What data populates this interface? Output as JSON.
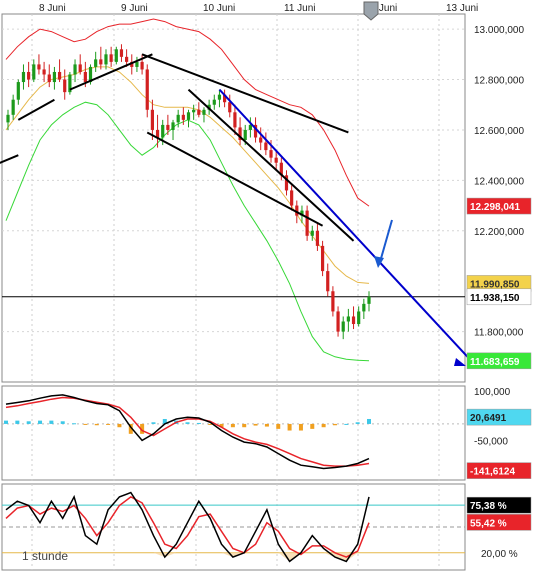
{
  "chart_data": {
    "type": "candlestick",
    "timeframe_label": "1 stunde",
    "date_labels": [
      "8 Juni",
      "9 Juni",
      "10 Juni",
      "11 Juni",
      "12 Juni",
      "13 Juni"
    ],
    "price_axis": {
      "ticks": [
        "13.000,000",
        "12.800,000",
        "12.600,000",
        "12.400,000",
        "12.200,000",
        "11.800,000"
      ],
      "ylim": [
        11600,
        13060
      ],
      "current_price": "11.938,150",
      "badges": [
        {
          "label": "12.298,041",
          "value": 12298,
          "color": "#e8242a"
        },
        {
          "label": "11.990,850",
          "value": 11991,
          "color": "#f3d24b"
        },
        {
          "label": "11.683,659",
          "value": 11684,
          "color": "#38e838"
        }
      ]
    },
    "candles": [
      {
        "o": 12630,
        "h": 12680,
        "l": 12600,
        "c": 12660
      },
      {
        "o": 12660,
        "h": 12740,
        "l": 12640,
        "c": 12720
      },
      {
        "o": 12720,
        "h": 12800,
        "l": 12700,
        "c": 12790
      },
      {
        "o": 12790,
        "h": 12860,
        "l": 12760,
        "c": 12830
      },
      {
        "o": 12830,
        "h": 12870,
        "l": 12770,
        "c": 12800
      },
      {
        "o": 12800,
        "h": 12880,
        "l": 12790,
        "c": 12860
      },
      {
        "o": 12860,
        "h": 12900,
        "l": 12820,
        "c": 12840
      },
      {
        "o": 12840,
        "h": 12870,
        "l": 12790,
        "c": 12820
      },
      {
        "o": 12820,
        "h": 12860,
        "l": 12770,
        "c": 12790
      },
      {
        "o": 12790,
        "h": 12850,
        "l": 12760,
        "c": 12830
      },
      {
        "o": 12830,
        "h": 12880,
        "l": 12790,
        "c": 12800
      },
      {
        "o": 12800,
        "h": 12840,
        "l": 12720,
        "c": 12750
      },
      {
        "o": 12750,
        "h": 12830,
        "l": 12740,
        "c": 12820
      },
      {
        "o": 12820,
        "h": 12880,
        "l": 12790,
        "c": 12860
      },
      {
        "o": 12860,
        "h": 12900,
        "l": 12820,
        "c": 12830
      },
      {
        "o": 12830,
        "h": 12870,
        "l": 12770,
        "c": 12790
      },
      {
        "o": 12790,
        "h": 12860,
        "l": 12780,
        "c": 12850
      },
      {
        "o": 12850,
        "h": 12910,
        "l": 12830,
        "c": 12880
      },
      {
        "o": 12880,
        "h": 12930,
        "l": 12840,
        "c": 12860
      },
      {
        "o": 12860,
        "h": 12920,
        "l": 12840,
        "c": 12900
      },
      {
        "o": 12900,
        "h": 12930,
        "l": 12850,
        "c": 12870
      },
      {
        "o": 12870,
        "h": 12930,
        "l": 12860,
        "c": 12920
      },
      {
        "o": 12920,
        "h": 12940,
        "l": 12870,
        "c": 12890
      },
      {
        "o": 12890,
        "h": 12920,
        "l": 12850,
        "c": 12870
      },
      {
        "o": 12870,
        "h": 12900,
        "l": 12820,
        "c": 12850
      },
      {
        "o": 12850,
        "h": 12890,
        "l": 12830,
        "c": 12870
      },
      {
        "o": 12870,
        "h": 12900,
        "l": 12820,
        "c": 12840
      },
      {
        "o": 12840,
        "h": 12860,
        "l": 12650,
        "c": 12680
      },
      {
        "o": 12680,
        "h": 12720,
        "l": 12560,
        "c": 12600
      },
      {
        "o": 12600,
        "h": 12660,
        "l": 12530,
        "c": 12570
      },
      {
        "o": 12570,
        "h": 12640,
        "l": 12540,
        "c": 12620
      },
      {
        "o": 12620,
        "h": 12660,
        "l": 12580,
        "c": 12600
      },
      {
        "o": 12600,
        "h": 12640,
        "l": 12560,
        "c": 12630
      },
      {
        "o": 12630,
        "h": 12680,
        "l": 12610,
        "c": 12660
      },
      {
        "o": 12660,
        "h": 12690,
        "l": 12620,
        "c": 12640
      },
      {
        "o": 12640,
        "h": 12680,
        "l": 12610,
        "c": 12670
      },
      {
        "o": 12670,
        "h": 12700,
        "l": 12640,
        "c": 12680
      },
      {
        "o": 12680,
        "h": 12710,
        "l": 12650,
        "c": 12660
      },
      {
        "o": 12660,
        "h": 12690,
        "l": 12630,
        "c": 12680
      },
      {
        "o": 12680,
        "h": 12720,
        "l": 12660,
        "c": 12700
      },
      {
        "o": 12700,
        "h": 12740,
        "l": 12680,
        "c": 12720
      },
      {
        "o": 12720,
        "h": 12760,
        "l": 12690,
        "c": 12740
      },
      {
        "o": 12740,
        "h": 12760,
        "l": 12690,
        "c": 12710
      },
      {
        "o": 12710,
        "h": 12740,
        "l": 12650,
        "c": 12670
      },
      {
        "o": 12670,
        "h": 12700,
        "l": 12580,
        "c": 12610
      },
      {
        "o": 12610,
        "h": 12650,
        "l": 12540,
        "c": 12560
      },
      {
        "o": 12560,
        "h": 12620,
        "l": 12540,
        "c": 12600
      },
      {
        "o": 12600,
        "h": 12650,
        "l": 12570,
        "c": 12620
      },
      {
        "o": 12620,
        "h": 12650,
        "l": 12550,
        "c": 12570
      },
      {
        "o": 12570,
        "h": 12610,
        "l": 12520,
        "c": 12550
      },
      {
        "o": 12550,
        "h": 12590,
        "l": 12500,
        "c": 12520
      },
      {
        "o": 12520,
        "h": 12560,
        "l": 12470,
        "c": 12490
      },
      {
        "o": 12490,
        "h": 12520,
        "l": 12440,
        "c": 12470
      },
      {
        "o": 12470,
        "h": 12490,
        "l": 12400,
        "c": 12420
      },
      {
        "o": 12420,
        "h": 12440,
        "l": 12340,
        "c": 12360
      },
      {
        "o": 12360,
        "h": 12380,
        "l": 12280,
        "c": 12300
      },
      {
        "o": 12300,
        "h": 12320,
        "l": 12230,
        "c": 12260
      },
      {
        "o": 12260,
        "h": 12300,
        "l": 12230,
        "c": 12280
      },
      {
        "o": 12280,
        "h": 12300,
        "l": 12160,
        "c": 12180
      },
      {
        "o": 12180,
        "h": 12220,
        "l": 12160,
        "c": 12200
      },
      {
        "o": 12200,
        "h": 12230,
        "l": 12120,
        "c": 12140
      },
      {
        "o": 12140,
        "h": 12160,
        "l": 12020,
        "c": 12040
      },
      {
        "o": 12040,
        "h": 12070,
        "l": 11940,
        "c": 11960
      },
      {
        "o": 11960,
        "h": 11980,
        "l": 11860,
        "c": 11880
      },
      {
        "o": 11880,
        "h": 11900,
        "l": 11780,
        "c": 11800
      },
      {
        "o": 11800,
        "h": 11860,
        "l": 11770,
        "c": 11840
      },
      {
        "o": 11840,
        "h": 11890,
        "l": 11800,
        "c": 11860
      },
      {
        "o": 11860,
        "h": 11900,
        "l": 11810,
        "c": 11830
      },
      {
        "o": 11830,
        "h": 11900,
        "l": 11820,
        "c": 11880
      },
      {
        "o": 11880,
        "h": 11930,
        "l": 11850,
        "c": 11910
      },
      {
        "o": 11910,
        "h": 11960,
        "l": 11880,
        "c": 11938
      }
    ],
    "bollinger": {
      "upper": [
        12880,
        12930,
        12970,
        13000,
        12990,
        12970,
        12950,
        12960,
        12990,
        13010,
        13020,
        13020,
        13030,
        13040,
        13030,
        13010,
        13000,
        12990,
        12960,
        12920,
        12860,
        12800,
        12760,
        12740,
        12720,
        12700,
        12690,
        12660,
        12600,
        12520,
        12420,
        12330,
        12298
      ],
      "middle": [
        12600,
        12660,
        12720,
        12770,
        12800,
        12810,
        12820,
        12840,
        12850,
        12850,
        12830,
        12790,
        12740,
        12700,
        12690,
        12690,
        12690,
        12680,
        12650,
        12610,
        12570,
        12520,
        12470,
        12420,
        12370,
        12310,
        12240,
        12180,
        12120,
        12060,
        12020,
        11995,
        11991
      ],
      "lower": [
        12240,
        12350,
        12460,
        12560,
        12620,
        12660,
        12690,
        12710,
        12700,
        12660,
        12600,
        12540,
        12500,
        12530,
        12580,
        12620,
        12640,
        12620,
        12560,
        12470,
        12380,
        12300,
        12230,
        12160,
        12080,
        11990,
        11880,
        11780,
        11720,
        11700,
        11690,
        11686,
        11684
      ]
    },
    "ma_line": [
      12560,
      12620,
      12680,
      12740,
      12780,
      12800,
      12810,
      12830,
      12850,
      12850,
      12830,
      12790,
      12740,
      12700,
      12690,
      12690,
      12690,
      12670,
      12640,
      12600,
      12550,
      12500,
      12440,
      12390,
      12330,
      12260,
      12190,
      12120,
      12040,
      11980,
      11940,
      11930,
      11940
    ],
    "trendlines": [
      {
        "color": "#000000",
        "from": [
          12,
          12760
        ],
        "to": [
          28,
          12900
        ]
      },
      {
        "color": "#000000",
        "from": [
          26,
          12900
        ],
        "to": [
          66,
          12590
        ]
      },
      {
        "color": "#000000",
        "from": [
          27,
          12590
        ],
        "to": [
          61,
          12220
        ]
      },
      {
        "color": "#000000",
        "from": [
          35,
          12760
        ],
        "to": [
          67,
          12160
        ]
      },
      {
        "color": "#000000",
        "from": [
          2,
          12640
        ],
        "to": [
          9,
          12720
        ]
      },
      {
        "color": "#000000",
        "from": [
          -5,
          12440
        ],
        "to": [
          2,
          12500
        ]
      },
      {
        "color": "#0000cc",
        "from": [
          41,
          12760
        ],
        "to": [
          90,
          11680
        ]
      }
    ],
    "macd": {
      "ticks": [
        "100,000",
        "-50,000"
      ],
      "ylim": [
        -170,
        115
      ],
      "badges": [
        {
          "label": "20,6491",
          "value": 20.65,
          "color": "#4fd8f0"
        },
        {
          "label": "-141,6124",
          "value": -141.6,
          "color": "#e8242a"
        }
      ],
      "macd_line": [
        60,
        65,
        70,
        78,
        85,
        88,
        80,
        70,
        62,
        58,
        40,
        -10,
        -50,
        -30,
        0,
        15,
        20,
        18,
        5,
        -20,
        -40,
        -55,
        -60,
        -70,
        -90,
        -110,
        -125,
        -130,
        -135,
        -132,
        -128,
        -120,
        -105
      ],
      "signal_line": [
        50,
        55,
        62,
        68,
        75,
        80,
        78,
        72,
        66,
        60,
        50,
        20,
        -20,
        -35,
        -15,
        5,
        15,
        15,
        8,
        -10,
        -30,
        -45,
        -55,
        -62,
        -75,
        -90,
        -105,
        -115,
        -125,
        -128,
        -128,
        -125,
        -120
      ],
      "histogram": [
        10,
        10,
        8,
        10,
        10,
        8,
        2,
        -2,
        -4,
        -2,
        -10,
        -30,
        -30,
        5,
        15,
        10,
        5,
        3,
        -3,
        -10,
        -10,
        -10,
        -5,
        -8,
        -15,
        -20,
        -20,
        -15,
        -10,
        -4,
        0,
        5,
        15
      ]
    },
    "stochastic": {
      "ticks": [
        "20,00 %"
      ],
      "ylim": [
        0,
        100
      ],
      "upper_level": 75.38,
      "lower_level": 20,
      "badges": [
        {
          "label": "75,38 %",
          "value": 75.38,
          "color": "#000000"
        },
        {
          "label": "55,42 %",
          "value": 55.42,
          "color": "#e8242a"
        }
      ],
      "k_line": [
        70,
        80,
        75,
        55,
        80,
        60,
        85,
        40,
        30,
        70,
        85,
        90,
        70,
        40,
        15,
        30,
        55,
        80,
        60,
        30,
        15,
        20,
        45,
        70,
        30,
        10,
        20,
        40,
        25,
        15,
        10,
        30,
        85
      ],
      "d_line": [
        60,
        72,
        75,
        65,
        72,
        68,
        75,
        60,
        40,
        55,
        75,
        85,
        78,
        55,
        30,
        25,
        40,
        62,
        65,
        45,
        25,
        20,
        30,
        55,
        45,
        25,
        18,
        28,
        28,
        20,
        15,
        22,
        55
      ]
    }
  }
}
